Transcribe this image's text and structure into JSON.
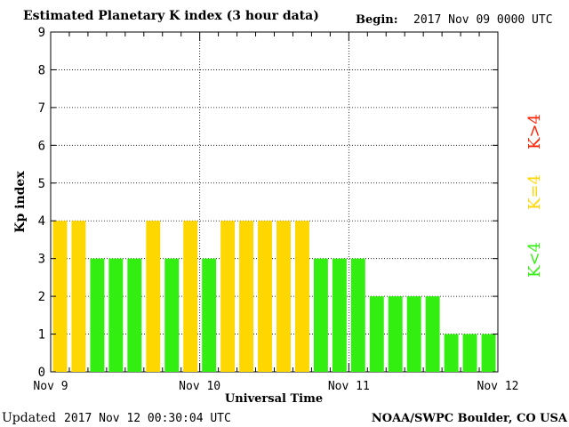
{
  "chart_data": {
    "type": "bar",
    "title": "Estimated Planetary K index (3 hour data)",
    "begin_label": "Begin:",
    "begin_value": "2017 Nov 09 0000 UTC",
    "ylabel": "Kp index",
    "xlabel": "Universal Time",
    "ylim": [
      0,
      9
    ],
    "yticks": [
      0,
      1,
      2,
      3,
      4,
      5,
      6,
      7,
      8,
      9
    ],
    "xticks": [
      "Nov 9",
      "Nov 10",
      "Nov 11",
      "Nov 12"
    ],
    "grid": true,
    "legend_placement": "right",
    "legend": [
      {
        "label": "K<4",
        "color": "#33ee11"
      },
      {
        "label": "K=4",
        "color": "#ffd700"
      },
      {
        "label": "K>4",
        "color": "#ff2200"
      }
    ],
    "values": [
      4,
      4,
      3,
      3,
      3,
      4,
      3,
      4,
      3,
      4,
      4,
      4,
      4,
      4,
      3,
      3,
      3,
      2,
      2,
      2,
      2,
      1,
      1,
      1
    ],
    "colors": {
      "below": "#33ee11",
      "equal": "#ffd700",
      "above": "#ff2200"
    }
  },
  "footer": {
    "updated_label": "Updated",
    "updated_value": "2017 Nov 12 00:30:04 UTC",
    "source": "NOAA/SWPC Boulder, CO USA"
  }
}
